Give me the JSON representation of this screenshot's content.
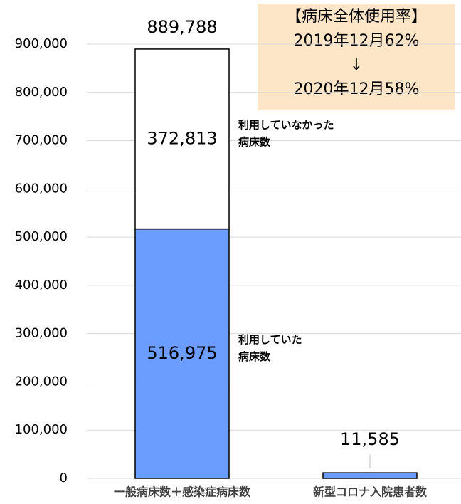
{
  "chart_data": {
    "type": "stacked_bar",
    "categories": [
      "一般病床数＋感染症病床数",
      "新型コロナ入院患者数"
    ],
    "series": [
      {
        "name": "利用していた病床数",
        "color": "#6b9cff",
        "values": [
          516975,
          11585
        ],
        "value_labels": [
          "516,975",
          "11,585"
        ]
      },
      {
        "name": "利用していなかった病床数",
        "color": "#ffffff",
        "values": [
          372813,
          null
        ],
        "value_labels": [
          "372,813",
          null
        ]
      }
    ],
    "totals": [
      889788,
      null
    ],
    "total_labels": [
      "889,788",
      null
    ],
    "annotation": [
      "【病床全体使用率】",
      "2019年12月62%",
      "↓",
      "2020年12月58%"
    ],
    "ylim": [
      0,
      900000
    ],
    "yticks": [
      0,
      {
        "value": 100000,
        "label": "100,000"
      },
      {
        "value": 200000,
        "label": "200,000"
      },
      {
        "value": 300000,
        "label": "300,000"
      },
      {
        "value": 400000,
        "label": "400,000"
      },
      {
        "value": 500000,
        "label": "500,000"
      },
      {
        "value": 600000,
        "label": "600,000"
      },
      {
        "value": 700000,
        "label": "700,000"
      },
      {
        "value": 800000,
        "label": "800,000"
      },
      {
        "value": 900000,
        "label": "900,000"
      }
    ],
    "grid": true
  }
}
